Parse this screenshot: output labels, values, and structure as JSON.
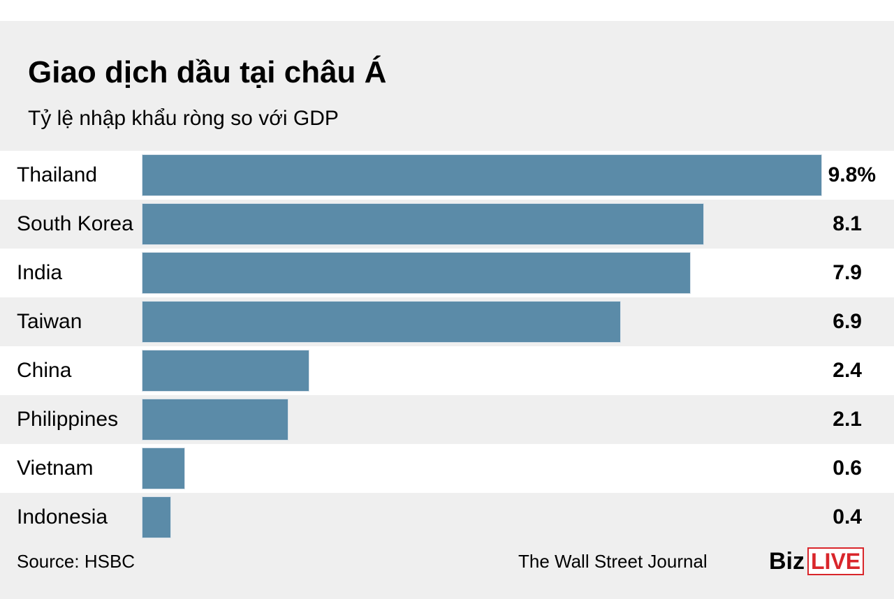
{
  "chart_data": {
    "type": "bar",
    "orientation": "horizontal",
    "title": "Giao dịch dầu tại châu Á",
    "subtitle": "Tỷ lệ nhập khẩu ròng so với GDP",
    "categories": [
      "Thailand",
      "South Korea",
      "India",
      "Taiwan",
      "China",
      "Philippines",
      "Vietnam",
      "Indonesia"
    ],
    "values": [
      9.8,
      8.1,
      7.9,
      6.9,
      2.4,
      2.1,
      0.6,
      0.4
    ],
    "value_labels": [
      "9.8%",
      "8.1",
      "7.9",
      "6.9",
      "2.4",
      "2.1",
      "0.6",
      "0.4"
    ],
    "xlim": [
      0,
      9.8
    ],
    "bar_color": "#5b8ba8",
    "grid": false,
    "legend": "none"
  },
  "footer": {
    "source": "Source: HSBC",
    "credit": "The Wall Street Journal",
    "logo_biz": "Biz",
    "logo_live": "LIVE"
  },
  "colors": {
    "panel_background": "#efefef",
    "logo_red": "#d9262b"
  }
}
